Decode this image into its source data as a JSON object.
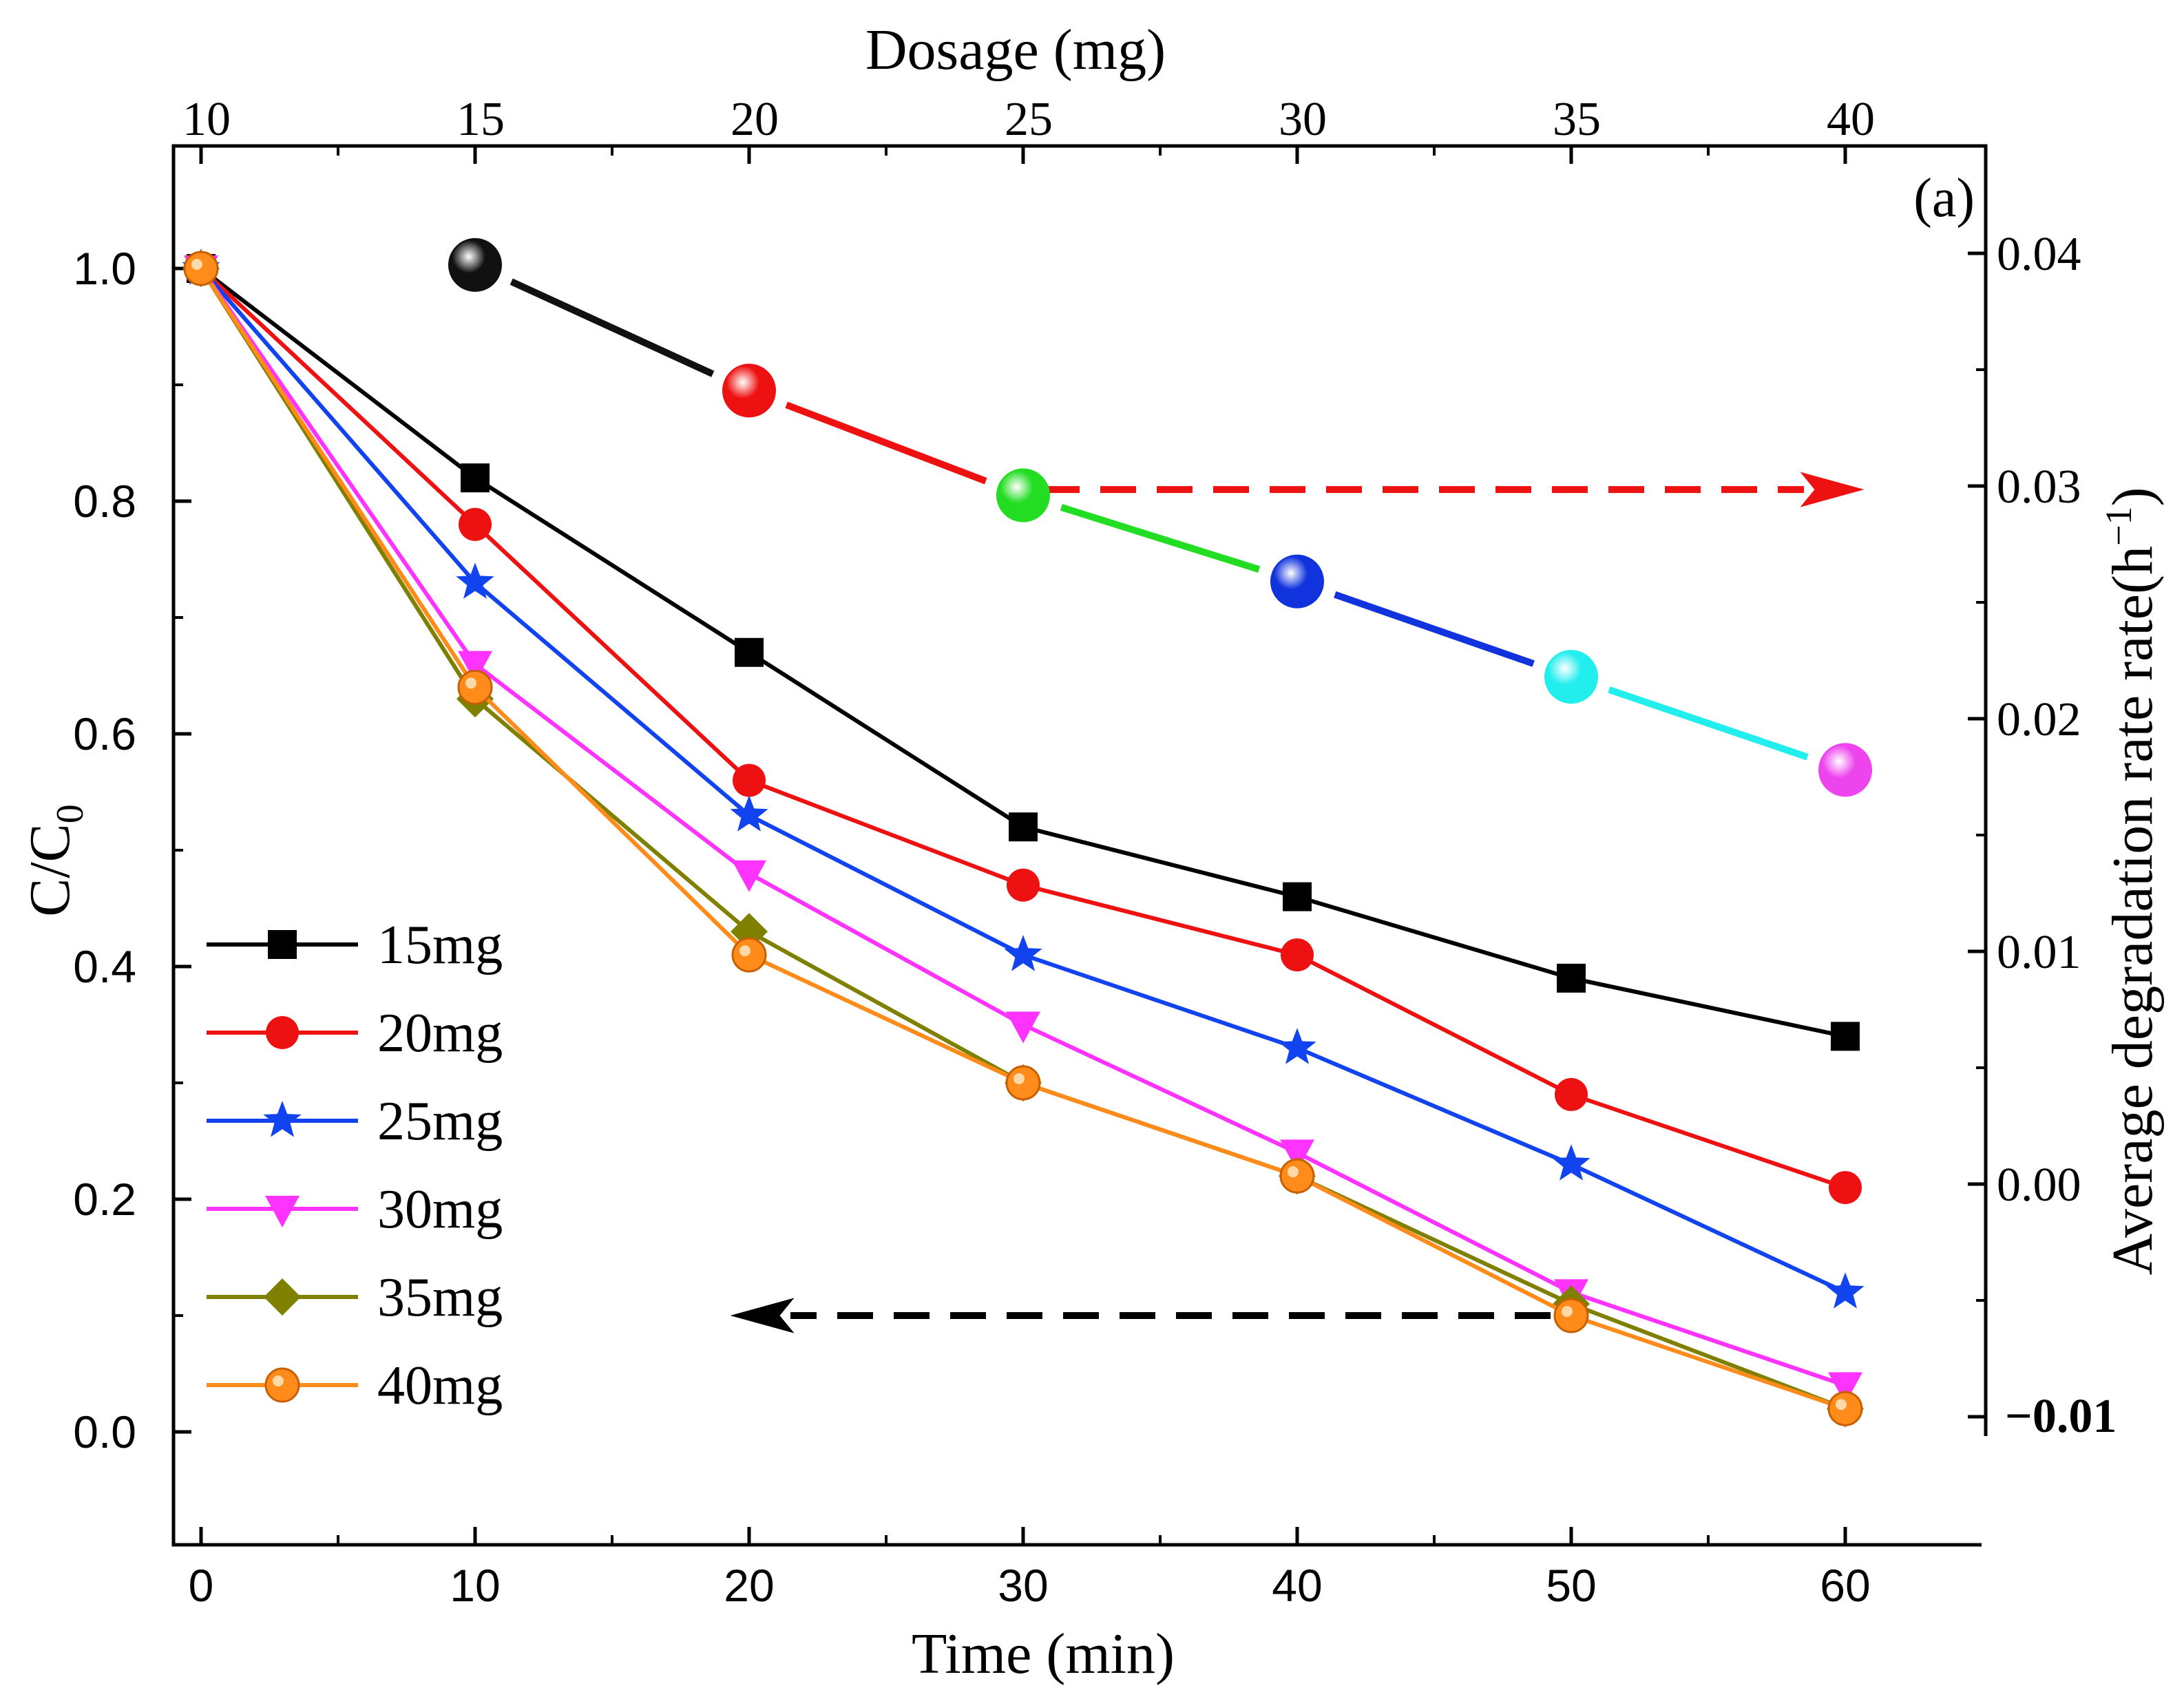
{
  "chart_data": {
    "type": "line",
    "panel_label": "(a)",
    "x": [
      0,
      10,
      20,
      30,
      40,
      50,
      60
    ],
    "xlabel": "Time (min)",
    "xlim": [
      -1,
      65
    ],
    "xticks": [
      "0",
      "10",
      "20",
      "30",
      "40",
      "50",
      "60"
    ],
    "ylabel_main": "C/C",
    "ylabel_sub": "0",
    "ylim": [
      -0.1,
      1.1
    ],
    "yticks": [
      "0.0",
      "0.2",
      "0.4",
      "0.6",
      "0.8",
      "1.0"
    ],
    "series": [
      {
        "name": "15mg",
        "color": "#000000",
        "marker": "square",
        "values": [
          1.0,
          0.82,
          0.67,
          0.52,
          0.46,
          0.39,
          0.34
        ]
      },
      {
        "name": "20mg",
        "color": "#ee1111",
        "marker": "circle",
        "values": [
          1.0,
          0.78,
          0.56,
          0.47,
          0.41,
          0.29,
          0.21
        ]
      },
      {
        "name": "25mg",
        "color": "#1144ee",
        "marker": "star",
        "values": [
          1.0,
          0.73,
          0.53,
          0.41,
          0.33,
          0.23,
          0.12
        ]
      },
      {
        "name": "30mg",
        "color": "#ff33ff",
        "marker": "triangle-down",
        "values": [
          1.0,
          0.66,
          0.48,
          0.35,
          0.24,
          0.12,
          0.04
        ]
      },
      {
        "name": "35mg",
        "color": "#808000",
        "marker": "diamond",
        "values": [
          1.0,
          0.63,
          0.43,
          0.3,
          0.22,
          0.11,
          0.02
        ]
      },
      {
        "name": "40mg",
        "color": "#ff8c1a",
        "marker": "hex",
        "values": [
          1.0,
          0.64,
          0.41,
          0.3,
          0.22,
          0.1,
          0.02
        ]
      }
    ],
    "top_axis": {
      "label": "Dosage (mg)",
      "ticks": [
        "10",
        "15",
        "20",
        "25",
        "30",
        "35",
        "40"
      ],
      "values": [
        10,
        15,
        20,
        25,
        30,
        35,
        40
      ]
    },
    "right_axis": {
      "label": "Average degradation rate rate(h",
      "label_sup": "−1",
      "label_close": ")",
      "ylim": [
        -0.015,
        0.045
      ],
      "ticks": [
        "0.04",
        "0.03",
        "0.02",
        "0.01",
        "0.00"
      ],
      "tick_values": [
        0.04,
        0.03,
        0.02,
        0.01,
        0.0
      ],
      "extra_tick": "−0.01",
      "extra_tick_value": -0.01
    },
    "rate_series": {
      "dosage": [
        15,
        20,
        25,
        30,
        35,
        40
      ],
      "values": [
        0.0395,
        0.0341,
        0.0296,
        0.0259,
        0.0218,
        0.0178
      ],
      "colors": [
        "#111111",
        "#ee1111",
        "#22dd22",
        "#1133dd",
        "#22eeee",
        "#ee44ee"
      ]
    },
    "arrows": [
      {
        "target_axis": "right",
        "color": "#ee1111",
        "from_time": 30,
        "to_time": 60,
        "value": 0.81
      },
      {
        "target_axis": "left",
        "color": "#000000",
        "from_time": 50,
        "to_time": 20,
        "value": 0.1
      }
    ]
  }
}
